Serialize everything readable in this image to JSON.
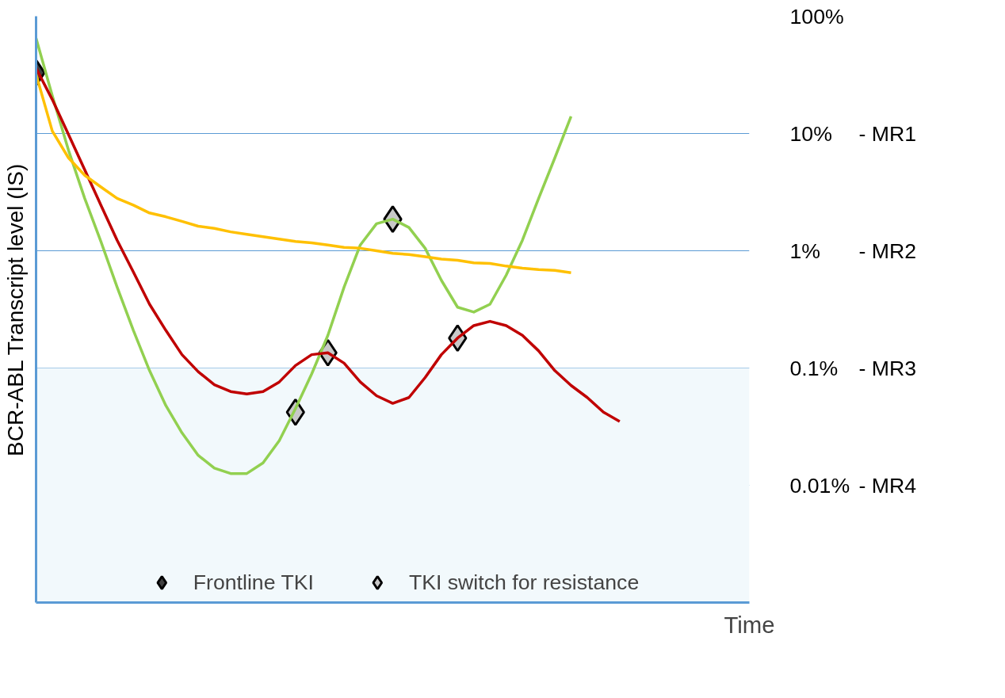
{
  "chart_data": {
    "type": "line",
    "xlabel": "Time",
    "ylabel": "BCR-ABL Transcript level (IS)",
    "categories": [
      null,
      null,
      null,
      null,
      null,
      null,
      null,
      null,
      null,
      null,
      null,
      null,
      null,
      null,
      null,
      null,
      null,
      null,
      null,
      null,
      null,
      null,
      null,
      null,
      null,
      null,
      null,
      null,
      null,
      null,
      null,
      null,
      null,
      null,
      null,
      null,
      null,
      null,
      null,
      null,
      null,
      null,
      null,
      null,
      null
    ],
    "series": [
      {
        "color": "#92d050",
        "values": [
          65,
          21,
          7.2,
          2.8,
          1.2,
          0.49,
          0.21,
          0.095,
          0.048,
          0.028,
          0.018,
          0.014,
          0.0126,
          0.0126,
          0.0155,
          0.024,
          0.045,
          0.089,
          0.19,
          0.49,
          1.12,
          1.7,
          1.86,
          1.58,
          1.05,
          0.56,
          0.33,
          0.3,
          0.35,
          0.62,
          1.23,
          2.8,
          6.2,
          14,
          null,
          null,
          null,
          null,
          null,
          null,
          null,
          null,
          null,
          null,
          null
        ]
      },
      {
        "color": "#c00000",
        "values": [
          36,
          19.5,
          9.8,
          4.9,
          2.45,
          1.23,
          0.66,
          0.35,
          0.21,
          0.13,
          0.093,
          0.072,
          0.063,
          0.06,
          0.063,
          0.076,
          0.105,
          0.13,
          0.135,
          0.11,
          0.076,
          0.058,
          0.05,
          0.056,
          0.083,
          0.13,
          0.18,
          0.23,
          0.25,
          0.23,
          0.19,
          0.14,
          0.095,
          0.071,
          0.056,
          0.042,
          0.035,
          null,
          null,
          null,
          null,
          null,
          null,
          null,
          null
        ]
      },
      {
        "color": "#ffc000",
        "values": [
          32,
          10.5,
          6.2,
          4.4,
          3.5,
          2.8,
          2.45,
          2.1,
          1.95,
          1.78,
          1.62,
          1.55,
          1.45,
          1.38,
          1.32,
          1.26,
          1.2,
          1.17,
          1.12,
          1.07,
          1.05,
          1.0,
          0.95,
          0.93,
          0.89,
          0.85,
          0.83,
          0.79,
          0.78,
          0.74,
          0.71,
          0.69,
          0.68,
          0.65,
          null,
          null,
          null,
          null,
          null,
          null,
          null,
          null,
          null,
          null,
          null
        ]
      },
      {
        "type": "scatter",
        "name": "Frontline TKI",
        "marker": "diamond",
        "color": "#404040",
        "values": [
          33,
          null,
          null,
          null,
          null,
          null,
          null,
          null,
          null,
          null,
          null,
          null,
          null,
          null,
          null,
          null,
          null,
          null,
          null,
          null,
          null,
          null,
          null,
          null,
          null,
          null,
          null,
          null,
          null,
          null,
          null,
          null,
          null,
          null,
          null,
          null,
          null,
          null,
          null,
          null,
          null,
          null,
          null,
          null,
          null
        ]
      },
      {
        "type": "scatter",
        "name": "TKI switch for resistance",
        "marker": "diamond",
        "color": "#c8c8c8",
        "values": [
          null,
          null,
          null,
          null,
          null,
          null,
          null,
          null,
          null,
          null,
          null,
          null,
          null,
          null,
          null,
          null,
          0.042,
          null,
          0.135,
          null,
          null,
          null,
          1.86,
          null,
          null,
          null,
          0.18,
          null,
          null,
          null,
          null,
          null,
          null,
          null,
          null,
          null,
          null,
          null,
          null,
          null,
          null,
          null,
          null,
          null,
          null
        ]
      }
    ],
    "log": true,
    "ylim": [
      0.001,
      100
    ],
    "yticks": [
      {
        "value": 100,
        "label": "100%"
      },
      {
        "value": 10,
        "label": "10%"
      },
      {
        "value": 1,
        "label": "1%"
      },
      {
        "value": 0.1,
        "label": "0.1%"
      },
      {
        "value": 0.01,
        "label": "0.01%"
      }
    ],
    "annotations": [
      "- MR1",
      "- MR2",
      "- MR3",
      "- MR4"
    ],
    "bands": [
      {
        "axis": "y",
        "from": 0.001,
        "to": 0.1,
        "color": "#f2f9fc"
      }
    ],
    "grid": "y",
    "legend": "bottom",
    "tick_labels": "y",
    "line_style": "solid"
  }
}
